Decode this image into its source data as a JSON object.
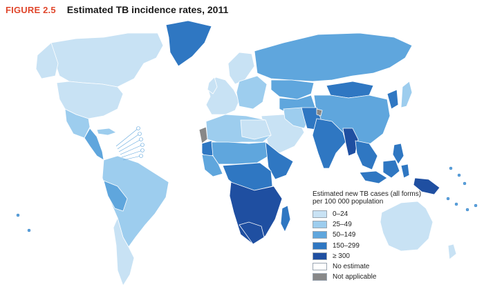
{
  "figure": {
    "label": "FIGURE 2.5",
    "title": "Estimated TB incidence rates, 2011"
  },
  "colors": {
    "ocean": "#ffffff",
    "border": "#ffffff",
    "c0_24": "#c8e2f4",
    "c25_49": "#9dcdee",
    "c50_149": "#5fa6dd",
    "c150_299": "#2f77c2",
    "c300": "#1f4fa1",
    "no_estimate": "#ffffff",
    "not_applicable": "#888888"
  },
  "legend": {
    "title": "Estimated new TB cases (all forms) per 100 000 population",
    "items": [
      {
        "label": "0–24",
        "color": "#c8e2f4"
      },
      {
        "label": "25–49",
        "color": "#9dcdee"
      },
      {
        "label": "50–149",
        "color": "#5fa6dd"
      },
      {
        "label": "150–299",
        "color": "#2f77c2"
      },
      {
        "label": "≥ 300",
        "color": "#1f4fa1"
      },
      {
        "label": "No estimate",
        "color": "#ffffff"
      },
      {
        "label": "Not applicable",
        "color": "#888888"
      }
    ]
  }
}
